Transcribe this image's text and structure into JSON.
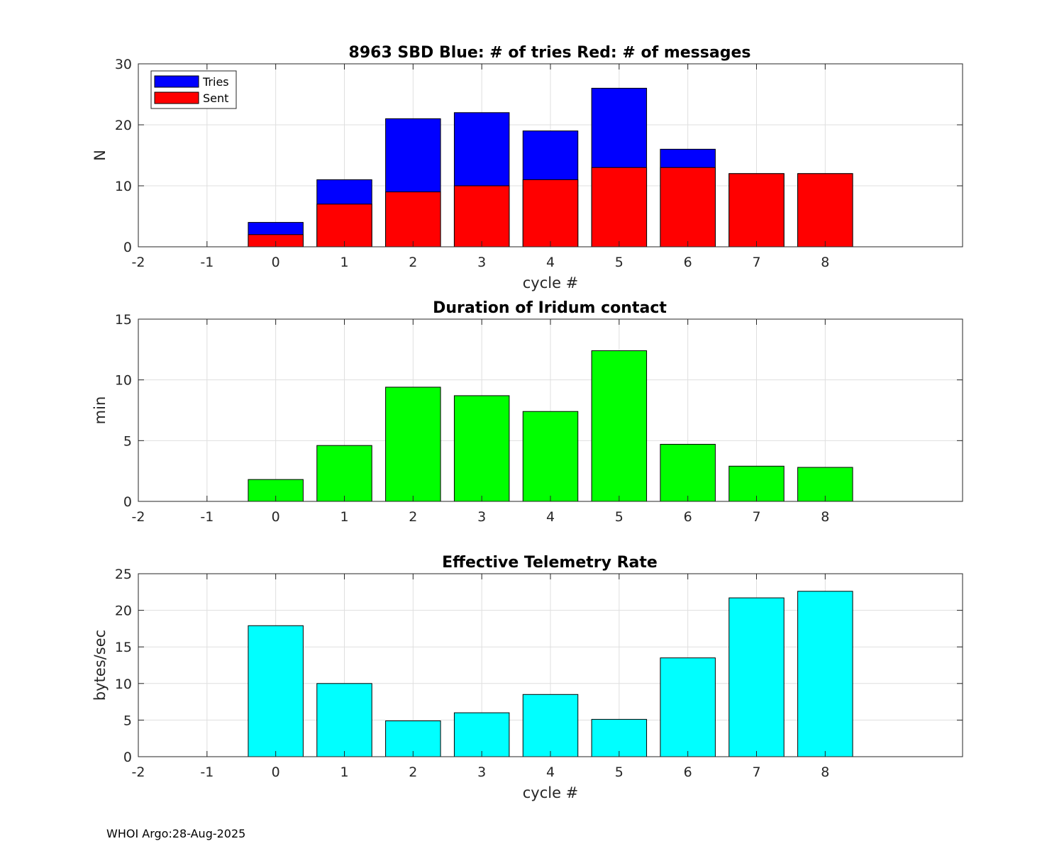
{
  "footer": "WHOI Argo:28-Aug-2025",
  "chart_data": [
    {
      "type": "bar",
      "stacked_overlay": true,
      "title": "8963 SBD  Blue: # of tries   Red: # of messages",
      "xlabel": "cycle #",
      "ylabel": "N",
      "xlim": [
        -2,
        10
      ],
      "ylim": [
        0,
        30
      ],
      "xticks": [
        -2,
        -1,
        0,
        1,
        2,
        3,
        4,
        5,
        6,
        7,
        8
      ],
      "yticks": [
        0,
        10,
        20,
        30
      ],
      "grid": true,
      "legend": {
        "placement": "top-left",
        "entries": [
          {
            "name": "Tries",
            "color": "#0000ff"
          },
          {
            "name": "Sent",
            "color": "#ff0000"
          }
        ]
      },
      "x": [
        0,
        1,
        2,
        3,
        4,
        5,
        6,
        7,
        8
      ],
      "series": [
        {
          "name": "Tries",
          "color": "#0000ff",
          "values": [
            4,
            11,
            21,
            22,
            19,
            26,
            16,
            12,
            12
          ]
        },
        {
          "name": "Sent",
          "color": "#ff0000",
          "values": [
            2,
            7,
            9,
            10,
            11,
            13,
            13,
            12,
            12
          ]
        }
      ]
    },
    {
      "type": "bar",
      "title": "Duration of Iridum contact",
      "xlabel": "",
      "ylabel": "min",
      "xlim": [
        -2,
        10
      ],
      "ylim": [
        0,
        15
      ],
      "xticks": [
        -2,
        -1,
        0,
        1,
        2,
        3,
        4,
        5,
        6,
        7,
        8
      ],
      "yticks": [
        0,
        5,
        10,
        15
      ],
      "grid": true,
      "x": [
        0,
        1,
        2,
        3,
        4,
        5,
        6,
        7,
        8
      ],
      "series": [
        {
          "name": "Duration",
          "color": "#00ff00",
          "values": [
            1.8,
            4.6,
            9.4,
            8.7,
            7.4,
            12.4,
            4.7,
            2.9,
            2.8
          ]
        }
      ]
    },
    {
      "type": "bar",
      "title": "Effective Telemetry Rate",
      "xlabel": "cycle #",
      "ylabel": "bytes/sec",
      "xlim": [
        -2,
        10
      ],
      "ylim": [
        0,
        25
      ],
      "xticks": [
        -2,
        -1,
        0,
        1,
        2,
        3,
        4,
        5,
        6,
        7,
        8
      ],
      "yticks": [
        0,
        5,
        10,
        15,
        20,
        25
      ],
      "grid": true,
      "x": [
        0,
        1,
        2,
        3,
        4,
        5,
        6,
        7,
        8
      ],
      "series": [
        {
          "name": "Rate",
          "color": "#00ffff",
          "values": [
            17.9,
            10.0,
            4.9,
            6.0,
            8.5,
            5.1,
            13.5,
            21.7,
            22.6
          ]
        }
      ]
    }
  ]
}
